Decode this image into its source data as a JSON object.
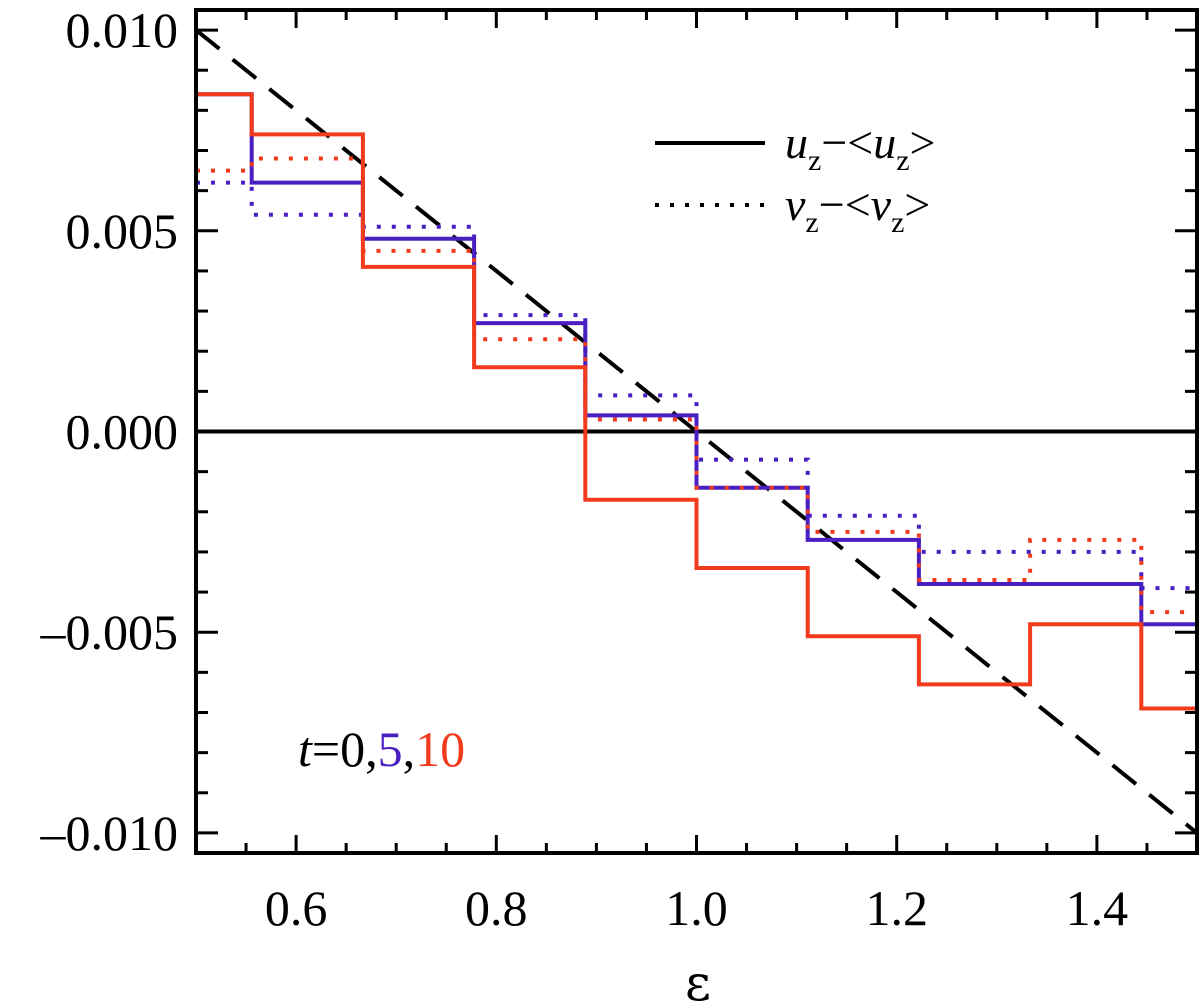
{
  "chart_data": {
    "type": "line",
    "xlabel": "ε",
    "ylabel": "",
    "xlim": [
      0.5,
      1.5
    ],
    "ylim": [
      -0.0105,
      0.0105
    ],
    "x_ticks": [
      0.6,
      0.8,
      1.0,
      1.2,
      1.4
    ],
    "x_tick_labels": [
      "0.6",
      "0.8",
      "1.0",
      "1.2",
      "1.4"
    ],
    "y_ticks": [
      0.01,
      0.005,
      0.0,
      -0.005,
      -0.01
    ],
    "y_tick_labels": [
      "0.010",
      "0.005",
      "0.000",
      "–0.005",
      "–0.010"
    ],
    "grid": false,
    "legend_position": "top-right",
    "colors": {
      "t0": "#000000",
      "t5": "#4a1fc2",
      "t10": "#f23a1c"
    },
    "bin_edges": [
      0.5,
      0.5556,
      0.6667,
      0.7778,
      0.8889,
      1.0,
      1.1111,
      1.2222,
      1.3333,
      1.4444,
      1.5
    ],
    "series": [
      {
        "time": "5",
        "component": "u_z",
        "style": "solid",
        "color": "#4a1fc2",
        "values": [
          0.0084,
          0.0062,
          0.0048,
          0.0027,
          0.0004,
          -0.0014,
          -0.0027,
          -0.0038,
          -0.0038,
          -0.0048
        ]
      },
      {
        "time": "5",
        "component": "v_z",
        "style": "dotted",
        "color": "#4a1fc2",
        "values": [
          0.0062,
          0.0054,
          0.0051,
          0.0029,
          0.0009,
          -0.0007,
          -0.0021,
          -0.003,
          -0.003,
          -0.0039
        ]
      },
      {
        "time": "10",
        "component": "u_z",
        "style": "solid",
        "color": "#f23a1c",
        "values": [
          0.0084,
          0.0074,
          0.0041,
          0.0016,
          -0.0017,
          -0.0034,
          -0.0051,
          -0.0063,
          -0.0048,
          -0.0069
        ]
      },
      {
        "time": "10",
        "component": "v_z",
        "style": "dotted",
        "color": "#f23a1c",
        "values": [
          0.0065,
          0.0068,
          0.0045,
          0.0023,
          0.0003,
          -0.0014,
          -0.0025,
          -0.0037,
          -0.0027,
          -0.0045
        ]
      }
    ],
    "reference_line": {
      "style": "dashed",
      "color": "#000000",
      "x": [
        0.5,
        1.5
      ],
      "y": [
        0.01,
        -0.01
      ]
    },
    "zero_line": {
      "style": "solid",
      "color": "#000000",
      "y": 0.0
    },
    "legend": [
      {
        "style": "solid",
        "text": "u_z−<u_z>",
        "main": "u",
        "sub": "z",
        "middle": "−<",
        "main2": "u",
        "sub2": "z",
        "end": ">"
      },
      {
        "style": "dotted",
        "text": "v_z−<v_z>",
        "main": "v",
        "sub": "z",
        "middle": "−<",
        "main2": "v",
        "sub2": "z",
        "end": ">"
      }
    ],
    "annotation": {
      "t_label": "t",
      "equals": "=",
      "t0": "0,",
      "t5": "5",
      "comma": ",",
      "t10": "10"
    }
  }
}
